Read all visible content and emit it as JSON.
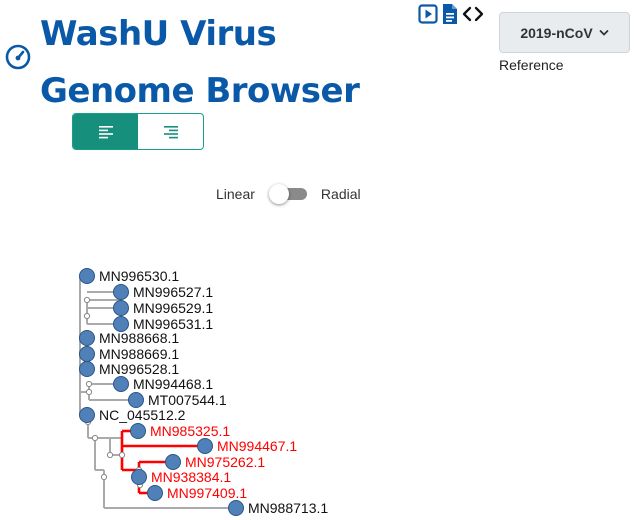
{
  "header": {
    "title": "WashU Virus Genome Browser",
    "logo_icon": "speedometer-icon"
  },
  "toolbar": {
    "icons": [
      "play-square-icon",
      "document-icon",
      "code-brackets-icon"
    ]
  },
  "reference": {
    "selected": "2019-nCoV",
    "label": "Reference"
  },
  "alignment": {
    "active": "left",
    "options": [
      "align-left-icon",
      "align-right-icon"
    ]
  },
  "layout_toggle": {
    "left_label": "Linear",
    "right_label": "Radial",
    "state": "Linear"
  },
  "colors": {
    "brand": "#0a59a8",
    "teal": "#16907c",
    "node": "#4f81b8",
    "highlight": "#ff0000",
    "branch": "#aaaaaa"
  },
  "tree": {
    "leaves": [
      {
        "name": "MN996530.1",
        "highlight": false
      },
      {
        "name": "MN996527.1",
        "highlight": false
      },
      {
        "name": "MN996529.1",
        "highlight": false
      },
      {
        "name": "MN996531.1",
        "highlight": false
      },
      {
        "name": "MN988668.1",
        "highlight": false
      },
      {
        "name": "MN988669.1",
        "highlight": false
      },
      {
        "name": "MN996528.1",
        "highlight": false
      },
      {
        "name": "MN994468.1",
        "highlight": false
      },
      {
        "name": "MT007544.1",
        "highlight": false
      },
      {
        "name": "NC_045512.2",
        "highlight": false
      },
      {
        "name": "MN985325.1",
        "highlight": true
      },
      {
        "name": "MN994467.1",
        "highlight": true
      },
      {
        "name": "MN975262.1",
        "highlight": true
      },
      {
        "name": "MN938384.1",
        "highlight": true
      },
      {
        "name": "MN997409.1",
        "highlight": true
      },
      {
        "name": "MN988713.1",
        "highlight": false
      }
    ]
  }
}
